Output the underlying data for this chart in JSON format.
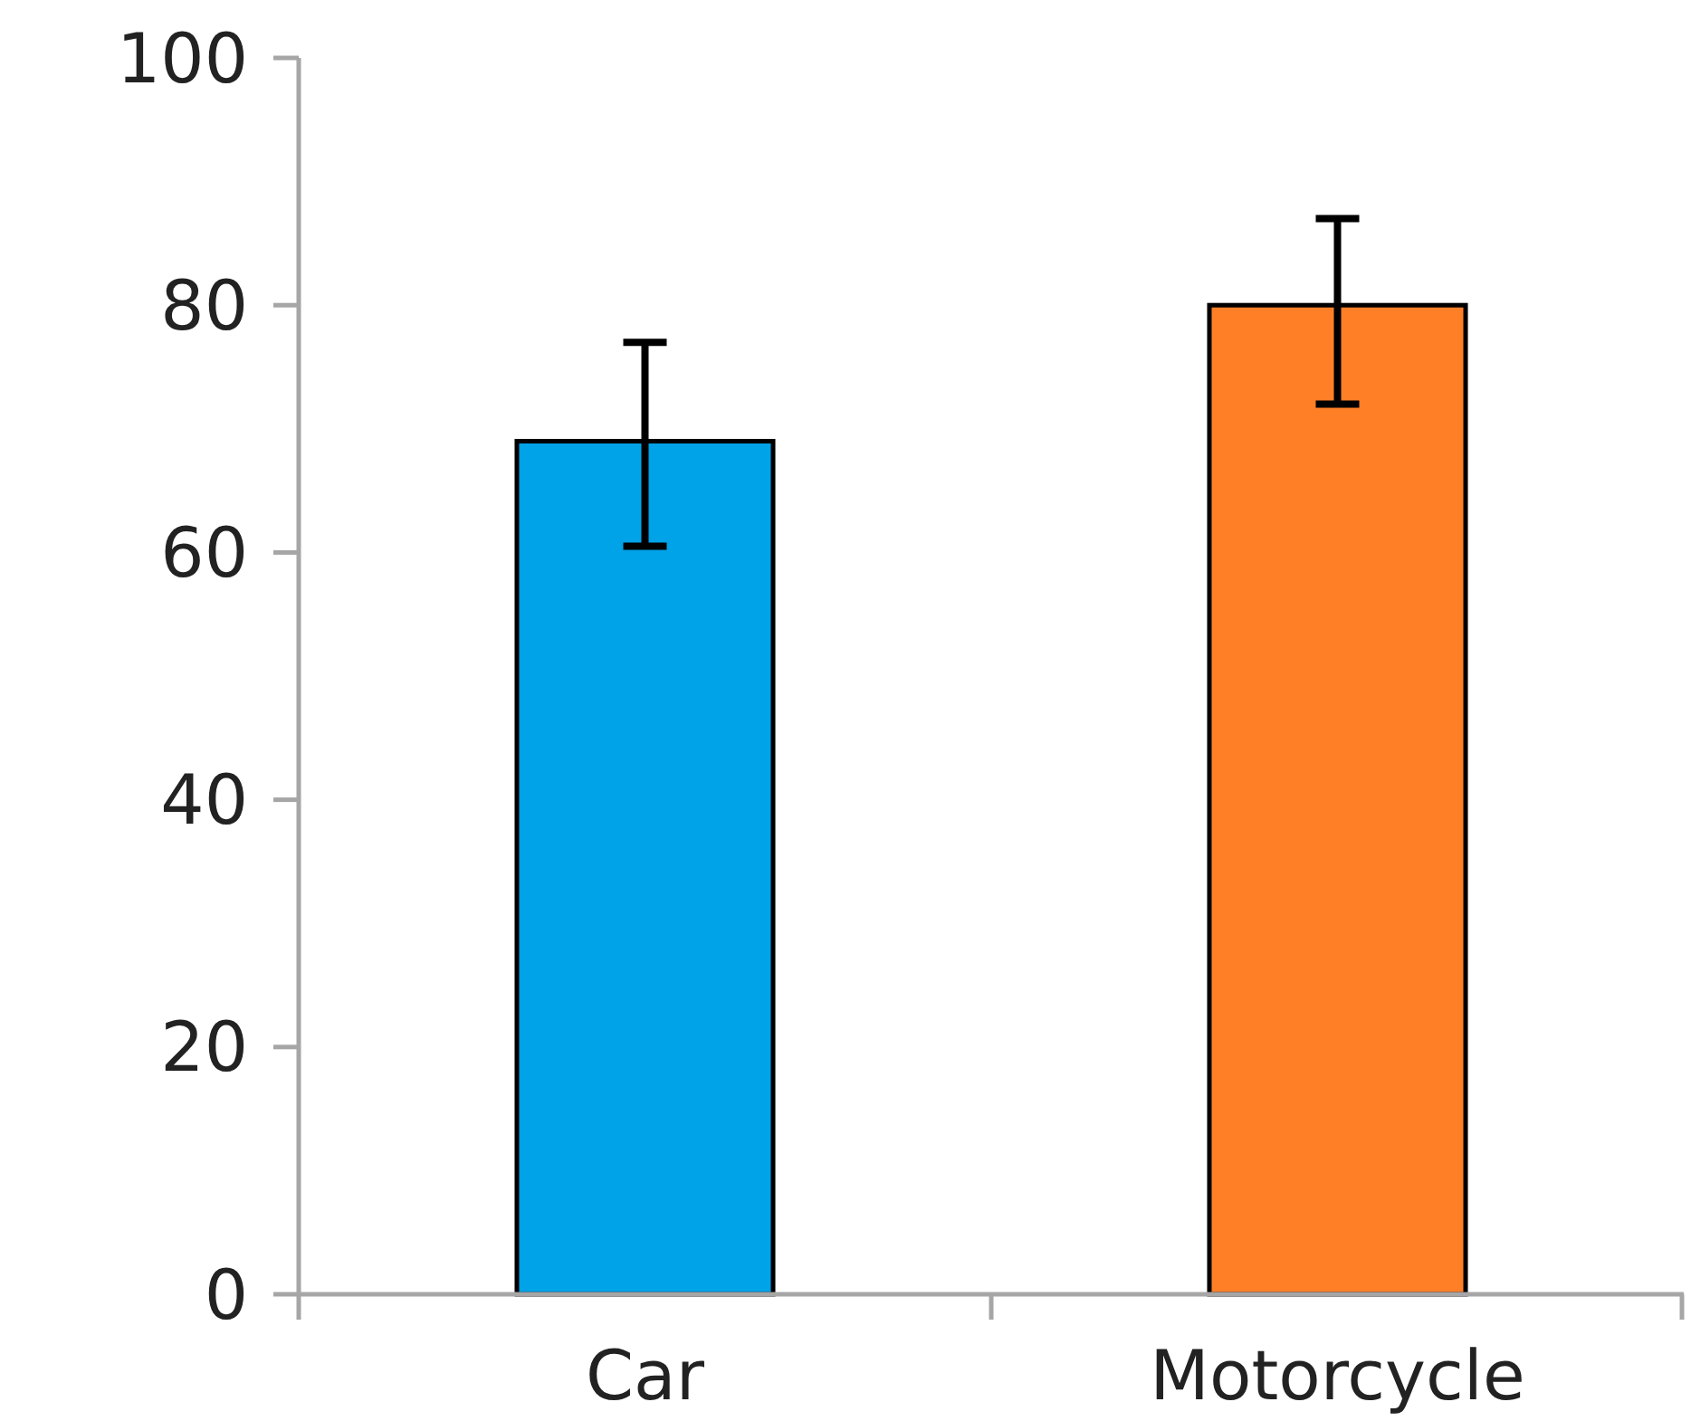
{
  "chart_data": {
    "type": "bar",
    "categories": [
      "Car",
      "Motorcycle"
    ],
    "values": [
      69,
      80
    ],
    "colors": [
      "#00a2e8",
      "#ff7f27"
    ],
    "errors": [
      [
        60.5,
        77
      ],
      [
        72,
        87
      ]
    ],
    "ylim": [
      0,
      100
    ],
    "yticks": [
      0,
      20,
      40,
      60,
      80,
      100
    ],
    "grid": false
  }
}
